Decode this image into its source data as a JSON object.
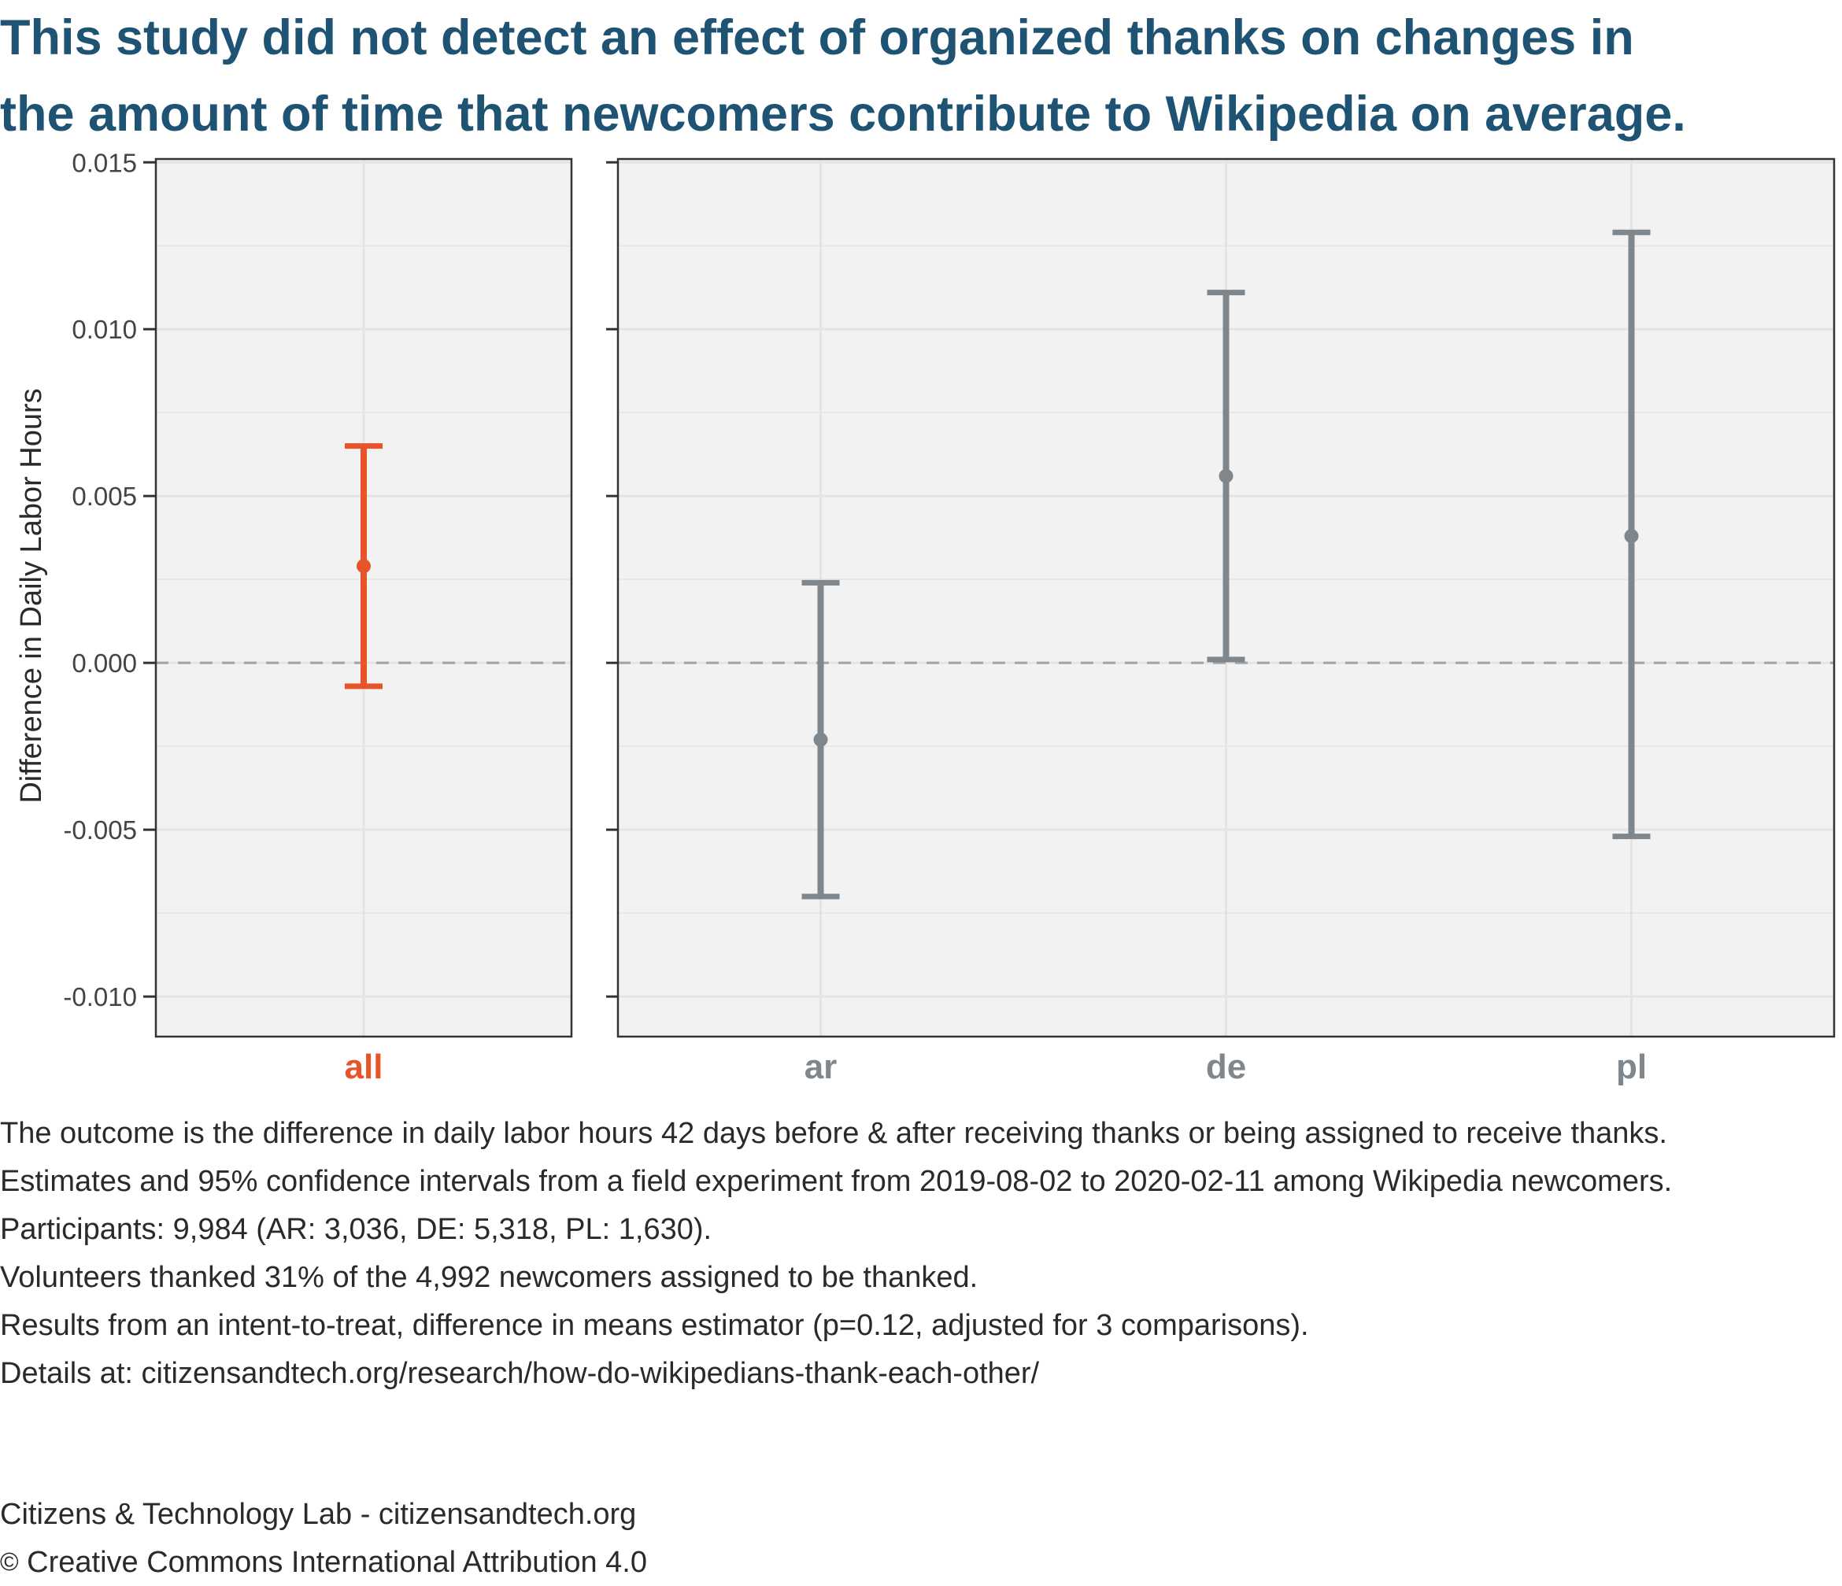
{
  "title": [
    "This study did not detect an effect of organized thanks on changes in",
    "the amount of time that newcomers contribute to Wikipedia on average."
  ],
  "chart_data": {
    "type": "errorbar",
    "ylabel": "Difference in Daily Labor Hours",
    "xlabel": "",
    "ylim": [
      -0.0112,
      0.0151
    ],
    "yticks": [
      0.015,
      0.01,
      0.005,
      0.0,
      -0.005,
      -0.01
    ],
    "ytick_labels": [
      "0.015",
      "0.010",
      "0.005",
      "0.000",
      "-0.005",
      "-0.010"
    ],
    "reference_line": {
      "y": 0,
      "style": "dashed"
    },
    "grid": true,
    "panels": [
      {
        "name": "all",
        "color": "#e8532a",
        "points": [
          {
            "category": "all",
            "estimate": 0.0029,
            "lower": -0.0007,
            "upper": 0.0065
          }
        ]
      },
      {
        "name": "languages",
        "color": "#7f878d",
        "points": [
          {
            "category": "ar",
            "estimate": -0.0023,
            "lower": -0.007,
            "upper": 0.0024
          },
          {
            "category": "de",
            "estimate": 0.0056,
            "lower": 0.0001,
            "upper": 0.0111
          },
          {
            "category": "pl",
            "estimate": 0.0038,
            "lower": -0.0052,
            "upper": 0.0129
          }
        ]
      }
    ]
  },
  "caption": [
    "The outcome is the difference in daily labor hours 42 days before & after receiving thanks or being assigned to receive thanks.",
    "Estimates and 95% confidence intervals from a field experiment from 2019-08-02 to 2020-02-11 among Wikipedia newcomers.",
    "Participants: 9,984 (AR: 3,036, DE: 5,318, PL: 1,630).",
    "Volunteers thanked 31% of the 4,992 newcomers assigned to be thanked.",
    "Results from an intent-to-treat, difference in means estimator (p=0.12, adjusted for 3 comparisons).",
    "Details at: citizensandtech.org/research/how-do-wikipedians-thank-each-other/"
  ],
  "footer": {
    "lab": "Citizens & Technology Lab - citizensandtech.org",
    "copyright_symbol": "©",
    "license": "Creative Commons International Attribution 4.0"
  },
  "colors": {
    "title": "#1f5373",
    "highlight": "#e8532a",
    "series": "#7f878d",
    "panel_bg": "#f2f2f2",
    "grid": "#e4e4e4",
    "refline": "#a3a3a3"
  }
}
